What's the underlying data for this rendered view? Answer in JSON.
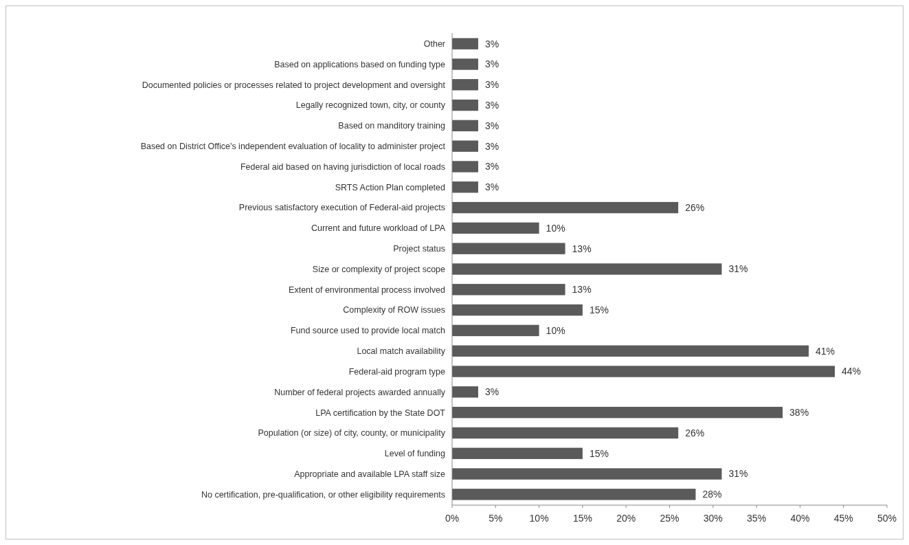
{
  "chart_data": {
    "type": "bar",
    "orientation": "horizontal",
    "categories": [
      "Other",
      "Based on applications based on funding type",
      "Documented policies or processes related to project development and oversight",
      "Legally recognized town, city, or county",
      "Based on manditory training",
      "Based on District Office's independent evaluation of locality to administer project",
      "Federal aid based on having jurisdiction of local roads",
      "SRTS Action Plan completed",
      "Previous satisfactory execution of Federal-aid projects",
      "Current and future workload of LPA",
      "Project status",
      "Size or complexity of project scope",
      "Extent of environmental process involved",
      "Complexity of ROW issues",
      "Fund source used to provide local match",
      "Local match availability",
      "Federal-aid program type",
      "Number of federal projects awarded annually",
      "LPA certification by the State DOT",
      "Population (or size) of city, county, or municipality",
      "Level of funding",
      "Appropriate and available LPA staff size",
      "No certification, pre-qualification, or other eligibility requirements"
    ],
    "values": [
      3,
      3,
      3,
      3,
      3,
      3,
      3,
      3,
      26,
      10,
      13,
      31,
      13,
      15,
      10,
      41,
      44,
      3,
      38,
      26,
      15,
      31,
      28
    ],
    "value_labels": [
      "3%",
      "3%",
      "3%",
      "3%",
      "3%",
      "3%",
      "3%",
      "3%",
      "26%",
      "10%",
      "13%",
      "31%",
      "13%",
      "15%",
      "10%",
      "41%",
      "44%",
      "3%",
      "38%",
      "26%",
      "15%",
      "31%",
      "28%"
    ],
    "color": "#5a5a5a",
    "xlim": [
      0,
      50
    ],
    "xticks": [
      {
        "value": 0,
        "label": "0%"
      },
      {
        "value": 5,
        "label": "5%"
      },
      {
        "value": 10,
        "label": "10%"
      },
      {
        "value": 15,
        "label": "15%"
      },
      {
        "value": 20,
        "label": "20%"
      },
      {
        "value": 25,
        "label": "25%"
      },
      {
        "value": 30,
        "label": "30%"
      },
      {
        "value": 35,
        "label": "35%"
      },
      {
        "value": 40,
        "label": "40%"
      },
      {
        "value": 45,
        "label": "45%"
      },
      {
        "value": 50,
        "label": "50%"
      }
    ],
    "grid": false
  }
}
